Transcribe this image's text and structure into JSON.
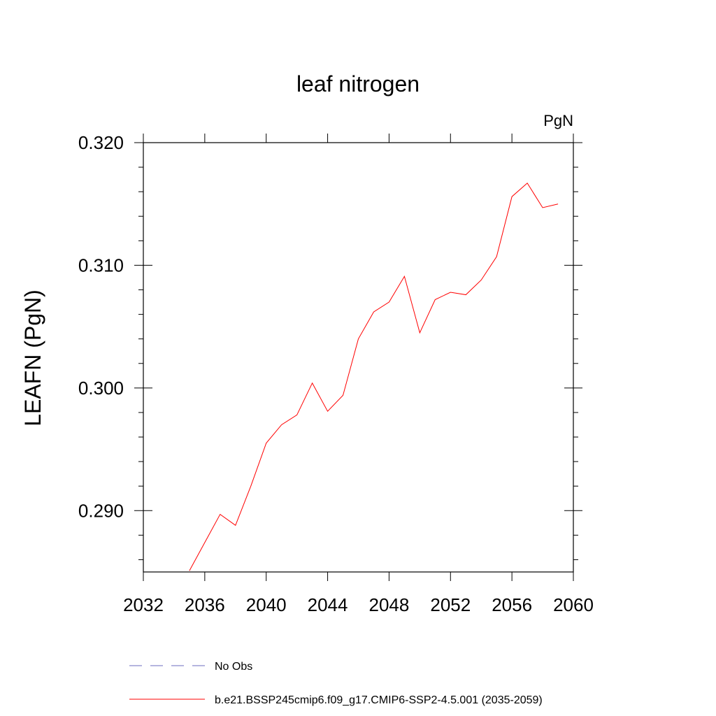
{
  "chart_data": {
    "type": "line",
    "title": "leaf nitrogen",
    "units_label": "PgN",
    "ylabel": "LEAFN  (PgN)",
    "xlabel": "",
    "xlim": [
      2032,
      2060
    ],
    "ylim": [
      0.285,
      0.32
    ],
    "x_ticks": [
      2032,
      2036,
      2040,
      2044,
      2048,
      2052,
      2056,
      2060
    ],
    "x_tick_labels": [
      "2032",
      "2036",
      "2040",
      "2044",
      "2048",
      "2052",
      "2056",
      "2060"
    ],
    "y_ticks": [
      0.29,
      0.3,
      0.31,
      0.32
    ],
    "y_tick_labels": [
      "0.290",
      "0.300",
      "0.310",
      "0.320"
    ],
    "grid": false,
    "legend_position": "bottom",
    "series": [
      {
        "name": "b.e21.BSSP245cmip6.f09_g17.CMIP6-SSP2-4.5.001 (2035-2059)",
        "color": "#ff0000",
        "line_style": "solid",
        "x": [
          2035,
          2036,
          2037,
          2038,
          2039,
          2040,
          2041,
          2042,
          2043,
          2044,
          2045,
          2046,
          2047,
          2048,
          2049,
          2050,
          2051,
          2052,
          2053,
          2054,
          2055,
          2056,
          2057,
          2058,
          2059
        ],
        "y": [
          0.2851,
          0.2874,
          0.2897,
          0.2888,
          0.292,
          0.2955,
          0.297,
          0.2978,
          0.3004,
          0.2981,
          0.2994,
          0.304,
          0.3062,
          0.307,
          0.3091,
          0.3045,
          0.3072,
          0.3078,
          0.3076,
          0.3088,
          0.3107,
          0.3156,
          0.3167,
          0.3147,
          0.315
        ]
      }
    ],
    "legend": [
      {
        "label": "No Obs",
        "color": "#6b6bbf",
        "line_style": "dashed"
      },
      {
        "label": "b.e21.BSSP245cmip6.f09_g17.CMIP6-SSP2-4.5.001 (2035-2059)",
        "color": "#ff0000",
        "line_style": "solid"
      }
    ]
  }
}
